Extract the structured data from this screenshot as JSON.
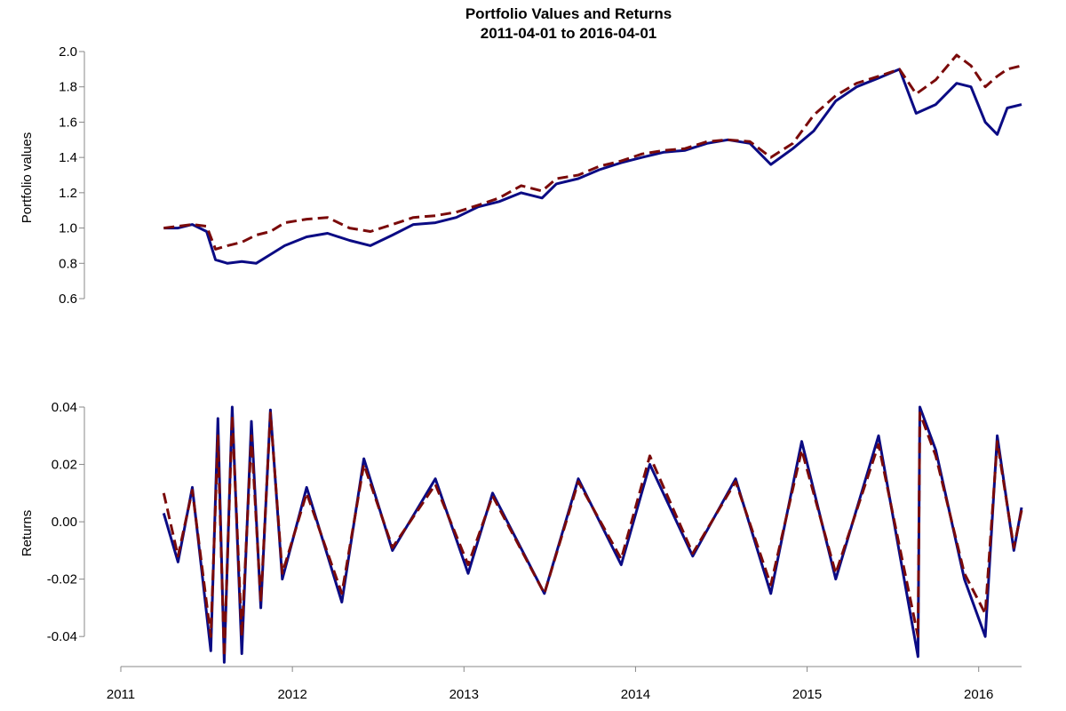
{
  "chart_data": {
    "type": "line",
    "title": "Portfolio Values and Returns",
    "subtitle": "2011-04-01 to 2016-04-01",
    "x_tick_labels": [
      "2011",
      "2012",
      "2013",
      "2014",
      "2015",
      "2016"
    ],
    "series_colors": [
      "#0b0b84",
      "#7a0a0a"
    ],
    "series_styles": [
      "solid",
      "dashed"
    ],
    "panels": [
      {
        "ylabel": "Portfolio values",
        "ylim": [
          0.6,
          2.0
        ],
        "y_ticks": [
          0.6,
          0.8,
          1.0,
          1.2,
          1.4,
          1.6,
          1.8,
          2.0
        ],
        "y_tick_labels": [
          "0.6",
          "0.8",
          "1.0",
          "1.2",
          "1.4",
          "1.6",
          "1.8",
          "2.0"
        ],
        "series": [
          {
            "values": [
              [
                "2011-04-01",
                1.0
              ],
              [
                "2011-05-01",
                1.0
              ],
              [
                "2011-06-01",
                1.02
              ],
              [
                "2011-07-01",
                0.98
              ],
              [
                "2011-07-20",
                0.82
              ],
              [
                "2011-08-15",
                0.8
              ],
              [
                "2011-09-15",
                0.81
              ],
              [
                "2011-10-15",
                0.8
              ],
              [
                "2011-11-15",
                0.85
              ],
              [
                "2011-12-15",
                0.9
              ],
              [
                "2012-02-01",
                0.95
              ],
              [
                "2012-03-15",
                0.97
              ],
              [
                "2012-05-01",
                0.93
              ],
              [
                "2012-06-15",
                0.9
              ],
              [
                "2012-08-01",
                0.96
              ],
              [
                "2012-09-15",
                1.02
              ],
              [
                "2012-11-01",
                1.03
              ],
              [
                "2012-12-15",
                1.06
              ],
              [
                "2013-02-01",
                1.12
              ],
              [
                "2013-03-15",
                1.15
              ],
              [
                "2013-05-01",
                1.2
              ],
              [
                "2013-06-15",
                1.17
              ],
              [
                "2013-07-15",
                1.25
              ],
              [
                "2013-09-01",
                1.28
              ],
              [
                "2013-10-15",
                1.33
              ],
              [
                "2013-12-01",
                1.37
              ],
              [
                "2014-01-15",
                1.4
              ],
              [
                "2014-03-01",
                1.43
              ],
              [
                "2014-04-15",
                1.44
              ],
              [
                "2014-06-01",
                1.48
              ],
              [
                "2014-07-15",
                1.5
              ],
              [
                "2014-09-01",
                1.48
              ],
              [
                "2014-10-15",
                1.36
              ],
              [
                "2014-12-01",
                1.45
              ],
              [
                "2015-01-15",
                1.55
              ],
              [
                "2015-03-01",
                1.72
              ],
              [
                "2015-04-15",
                1.8
              ],
              [
                "2015-06-01",
                1.85
              ],
              [
                "2015-07-15",
                1.9
              ],
              [
                "2015-08-20",
                1.65
              ],
              [
                "2015-10-01",
                1.7
              ],
              [
                "2015-11-15",
                1.82
              ],
              [
                "2015-12-15",
                1.8
              ],
              [
                "2016-01-15",
                1.6
              ],
              [
                "2016-02-10",
                1.53
              ],
              [
                "2016-03-01",
                1.68
              ],
              [
                "2016-04-01",
                1.7
              ]
            ]
          },
          {
            "values": [
              [
                "2011-04-01",
                1.0
              ],
              [
                "2011-05-01",
                1.01
              ],
              [
                "2011-06-01",
                1.02
              ],
              [
                "2011-07-01",
                1.01
              ],
              [
                "2011-07-20",
                0.88
              ],
              [
                "2011-08-15",
                0.9
              ],
              [
                "2011-09-15",
                0.92
              ],
              [
                "2011-10-15",
                0.96
              ],
              [
                "2011-11-15",
                0.98
              ],
              [
                "2011-12-15",
                1.03
              ],
              [
                "2012-02-01",
                1.05
              ],
              [
                "2012-03-15",
                1.06
              ],
              [
                "2012-05-01",
                1.0
              ],
              [
                "2012-06-15",
                0.98
              ],
              [
                "2012-08-01",
                1.02
              ],
              [
                "2012-09-15",
                1.06
              ],
              [
                "2012-11-01",
                1.07
              ],
              [
                "2012-12-15",
                1.09
              ],
              [
                "2013-02-01",
                1.13
              ],
              [
                "2013-03-15",
                1.17
              ],
              [
                "2013-05-01",
                1.24
              ],
              [
                "2013-06-15",
                1.21
              ],
              [
                "2013-07-15",
                1.28
              ],
              [
                "2013-09-01",
                1.3
              ],
              [
                "2013-10-15",
                1.35
              ],
              [
                "2013-12-01",
                1.38
              ],
              [
                "2014-01-15",
                1.42
              ],
              [
                "2014-03-01",
                1.44
              ],
              [
                "2014-04-15",
                1.45
              ],
              [
                "2014-06-01",
                1.49
              ],
              [
                "2014-07-15",
                1.5
              ],
              [
                "2014-09-01",
                1.49
              ],
              [
                "2014-10-15",
                1.4
              ],
              [
                "2014-12-01",
                1.48
              ],
              [
                "2015-01-15",
                1.64
              ],
              [
                "2015-03-01",
                1.75
              ],
              [
                "2015-04-15",
                1.82
              ],
              [
                "2015-06-01",
                1.86
              ],
              [
                "2015-07-15",
                1.9
              ],
              [
                "2015-08-20",
                1.76
              ],
              [
                "2015-10-01",
                1.84
              ],
              [
                "2015-11-15",
                1.98
              ],
              [
                "2015-12-15",
                1.92
              ],
              [
                "2016-01-15",
                1.8
              ],
              [
                "2016-02-10",
                1.86
              ],
              [
                "2016-03-01",
                1.9
              ],
              [
                "2016-04-01",
                1.92
              ]
            ]
          }
        ]
      },
      {
        "ylabel": "Returns",
        "ylim": [
          -0.048,
          0.04
        ],
        "y_ticks": [
          -0.04,
          -0.02,
          0.0,
          0.02,
          0.04
        ],
        "y_tick_labels": [
          "-0.04",
          "-0.02",
          "0.00",
          "0.02",
          "0.04"
        ],
        "series": [
          {
            "values": [
              [
                "2011-04-01",
                0.003
              ],
              [
                "2011-05-01",
                -0.014
              ],
              [
                "2011-06-01",
                0.012
              ],
              [
                "2011-07-10",
                -0.045
              ],
              [
                "2011-07-25",
                0.036
              ],
              [
                "2011-08-08",
                -0.049
              ],
              [
                "2011-08-25",
                0.04
              ],
              [
                "2011-09-15",
                -0.046
              ],
              [
                "2011-10-05",
                0.035
              ],
              [
                "2011-10-25",
                -0.03
              ],
              [
                "2011-11-15",
                0.039
              ],
              [
                "2011-12-10",
                -0.02
              ],
              [
                "2012-02-01",
                0.012
              ],
              [
                "2012-04-15",
                -0.028
              ],
              [
                "2012-06-01",
                0.022
              ],
              [
                "2012-08-01",
                -0.01
              ],
              [
                "2012-11-01",
                0.015
              ],
              [
                "2013-01-10",
                -0.018
              ],
              [
                "2013-03-01",
                0.01
              ],
              [
                "2013-06-20",
                -0.025
              ],
              [
                "2013-09-01",
                0.015
              ],
              [
                "2013-12-01",
                -0.015
              ],
              [
                "2014-02-01",
                0.02
              ],
              [
                "2014-05-01",
                -0.012
              ],
              [
                "2014-08-01",
                0.015
              ],
              [
                "2014-10-15",
                -0.025
              ],
              [
                "2014-12-20",
                0.028
              ],
              [
                "2015-03-01",
                -0.02
              ],
              [
                "2015-06-01",
                0.03
              ],
              [
                "2015-08-24",
                -0.047
              ],
              [
                "2015-08-28",
                0.04
              ],
              [
                "2015-10-01",
                0.025
              ],
              [
                "2015-12-01",
                -0.02
              ],
              [
                "2016-01-15",
                -0.04
              ],
              [
                "2016-02-10",
                0.03
              ],
              [
                "2016-03-15",
                -0.01
              ],
              [
                "2016-04-01",
                0.005
              ]
            ]
          },
          {
            "values": [
              [
                "2011-04-01",
                0.01
              ],
              [
                "2011-05-01",
                -0.012
              ],
              [
                "2011-06-01",
                0.011
              ],
              [
                "2011-07-10",
                -0.04
              ],
              [
                "2011-07-25",
                0.03
              ],
              [
                "2011-08-08",
                -0.047
              ],
              [
                "2011-08-25",
                0.037
              ],
              [
                "2011-09-15",
                -0.04
              ],
              [
                "2011-10-05",
                0.03
              ],
              [
                "2011-10-25",
                -0.028
              ],
              [
                "2011-11-15",
                0.038
              ],
              [
                "2011-12-10",
                -0.018
              ],
              [
                "2012-02-01",
                0.01
              ],
              [
                "2012-04-15",
                -0.025
              ],
              [
                "2012-06-01",
                0.02
              ],
              [
                "2012-08-01",
                -0.009
              ],
              [
                "2012-11-01",
                0.013
              ],
              [
                "2013-01-10",
                -0.015
              ],
              [
                "2013-03-01",
                0.009
              ],
              [
                "2013-06-20",
                -0.025
              ],
              [
                "2013-09-01",
                0.014
              ],
              [
                "2013-12-01",
                -0.013
              ],
              [
                "2014-02-01",
                0.023
              ],
              [
                "2014-05-01",
                -0.011
              ],
              [
                "2014-08-01",
                0.014
              ],
              [
                "2014-10-15",
                -0.022
              ],
              [
                "2014-12-20",
                0.025
              ],
              [
                "2015-03-01",
                -0.018
              ],
              [
                "2015-06-01",
                0.027
              ],
              [
                "2015-08-24",
                -0.04
              ],
              [
                "2015-08-28",
                0.038
              ],
              [
                "2015-10-01",
                0.023
              ],
              [
                "2015-12-01",
                -0.018
              ],
              [
                "2016-01-15",
                -0.032
              ],
              [
                "2016-02-10",
                0.028
              ],
              [
                "2016-03-15",
                -0.009
              ],
              [
                "2016-04-01",
                0.004
              ]
            ]
          }
        ]
      }
    ]
  }
}
